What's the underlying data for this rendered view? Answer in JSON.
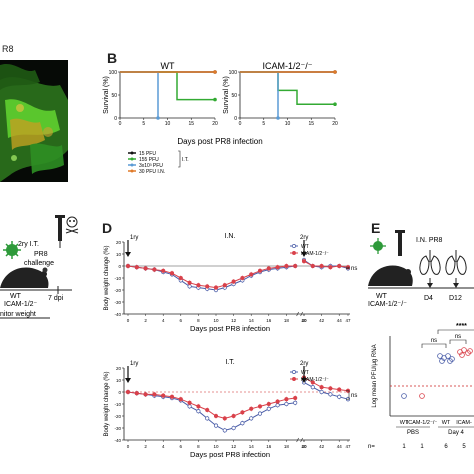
{
  "panel_a": {
    "fragment_label": "R8"
  },
  "panel_b": {
    "letter": "B",
    "charts": [
      {
        "title": "WT",
        "ylabel": "Survival (%)",
        "yticks": [
          "100",
          "50",
          "0"
        ],
        "xticks": [
          "0",
          "5",
          "10",
          "15",
          "20"
        ],
        "series": [
          {
            "name": "15 PFU",
            "color": "#111111",
            "x": [
              0,
              20
            ],
            "y": [
              100,
              100
            ]
          },
          {
            "name": "155 PFU",
            "color": "#33aa33",
            "x": [
              0,
              8,
              12,
              12,
              20
            ],
            "y": [
              100,
              100,
              100,
              40,
              40
            ]
          },
          {
            "name": "3x10³ PFU",
            "color": "#5b9bd5",
            "x": [
              0,
              6,
              8,
              8
            ],
            "y": [
              100,
              100,
              100,
              0
            ]
          },
          {
            "name": "30 PFU I.N.",
            "color": "#e07b2a",
            "x": [
              0,
              20
            ],
            "y": [
              100,
              100
            ]
          }
        ]
      },
      {
        "title": "ICAM-1/2⁻/⁻",
        "ylabel": "Survival (%)",
        "yticks": [
          "100",
          "50",
          "0"
        ],
        "xticks": [
          "0",
          "5",
          "10",
          "15",
          "20"
        ],
        "series": [
          {
            "name": "15 PFU",
            "color": "#111111",
            "x": [
              0,
              20
            ],
            "y": [
              100,
              100
            ]
          },
          {
            "name": "155 PFU",
            "color": "#33aa33",
            "x": [
              0,
              8,
              8,
              12,
              12,
              20
            ],
            "y": [
              100,
              100,
              60,
              60,
              30,
              30
            ]
          },
          {
            "name": "3x10³ PFU",
            "color": "#5b9bd5",
            "x": [
              0,
              6,
              8,
              8
            ],
            "y": [
              100,
              100,
              100,
              0
            ]
          },
          {
            "name": "30 PFU I.N.",
            "color": "#e07b2a",
            "x": [
              0,
              20
            ],
            "y": [
              100,
              100
            ]
          }
        ]
      }
    ],
    "xlabel": "Days post PR8 infection",
    "legend_group": "I.T."
  },
  "panel_c": {
    "label_2ry": "2ry I.T.",
    "label_pr8": "PR8",
    "label_challenge": "challenge",
    "label_wt": "WT",
    "label_icam": "ICAM-1/2⁻",
    "label_dpi": "7 dpi",
    "label_monitor": "nitor weight"
  },
  "panel_d": {
    "letter": "D",
    "xlabel": "Days post PR8 infection",
    "ylabel": "Body weight change (%)",
    "xticks": [
      "0",
      "2",
      "4",
      "6",
      "8",
      "10",
      "12",
      "14",
      "16",
      "18",
      "20",
      "40",
      "42",
      "44",
      "47"
    ],
    "legend": [
      "WT",
      "ICAM-1/2⁻/⁻"
    ],
    "charts": [
      {
        "title": "I.N.",
        "arrow_1ry": "1ry",
        "arrow_2ry": "2ry",
        "ns": "ns",
        "yticks": [
          "20",
          "10",
          "0",
          "-10",
          "-20",
          "-30",
          "-40"
        ],
        "wt": [
          0,
          -1,
          -2,
          -3,
          -5,
          -7,
          -12,
          -17,
          -18,
          -19,
          -20,
          -18,
          -15,
          -12,
          -8,
          -5,
          -3,
          -2,
          -1,
          0,
          5,
          0,
          -1,
          0,
          0,
          -2
        ],
        "ko": [
          0,
          -1,
          -2,
          -3,
          -4,
          -6,
          -10,
          -14,
          -16,
          -17,
          -18,
          -16,
          -13,
          -10,
          -7,
          -4,
          -2,
          -1,
          0,
          0,
          4,
          0,
          0,
          -1,
          0,
          -1
        ]
      },
      {
        "title": "I.T.",
        "arrow_1ry": "1ry",
        "arrow_2ry": "2ry",
        "ns": "ns",
        "yticks": [
          "20",
          "10",
          "0",
          "-10",
          "-20",
          "-30",
          "-40"
        ],
        "wt": [
          0,
          -1,
          -2,
          -3,
          -4,
          -5,
          -7,
          -12,
          -16,
          -22,
          -28,
          -32,
          -30,
          -26,
          -22,
          -18,
          -14,
          -11,
          -10,
          -9,
          8,
          4,
          0,
          -2,
          -4,
          -6
        ],
        "ko": [
          0,
          -1,
          -2,
          -2,
          -3,
          -4,
          -6,
          -9,
          -12,
          -15,
          -20,
          -22,
          -20,
          -17,
          -14,
          -12,
          -10,
          -8,
          -6,
          -5,
          12,
          8,
          4,
          3,
          2,
          1
        ]
      }
    ]
  },
  "panel_e": {
    "letter": "E",
    "in_pr8": "I.N. PR8",
    "wt": "WT",
    "icam": "ICAM-1/2⁻/⁻",
    "d4": "D4",
    "d12": "D12",
    "ylabel": "Log mean PFU/μg RNA",
    "stars": "****",
    "ns": "ns",
    "xlabels": [
      "WT",
      "ICAM-1/2⁻/⁻",
      "WT",
      "ICAM-"
    ],
    "group_pbs": "PBS",
    "group_day4": "Day 4",
    "n_label": "n=",
    "n_values": [
      "1",
      "1",
      "6",
      "5"
    ]
  },
  "colors": {
    "wt": "#4a5da8",
    "ko": "#d9414a",
    "green": "#33aa33"
  }
}
